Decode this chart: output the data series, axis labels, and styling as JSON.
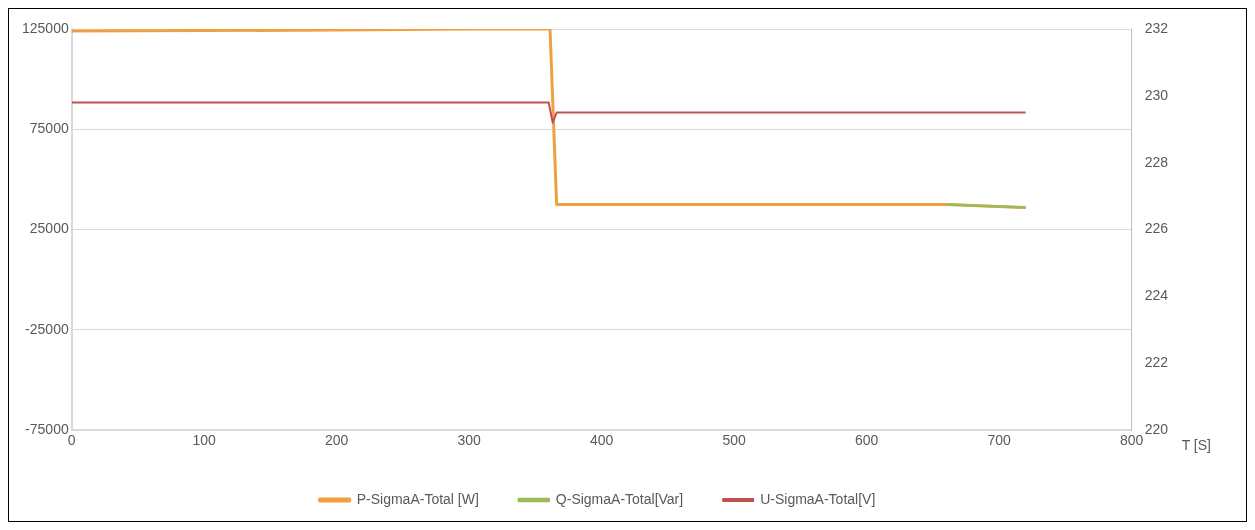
{
  "chart_data": {
    "type": "line",
    "xlabel": "T [S]",
    "xlim": [
      0,
      800
    ],
    "xticks": [
      0,
      100,
      200,
      300,
      400,
      500,
      600,
      700,
      800
    ],
    "ylim": [
      -75000,
      125000
    ],
    "yticks": [
      -75000,
      -25000,
      25000,
      75000,
      125000
    ],
    "y2lim": [
      220,
      232
    ],
    "y2ticks": [
      220,
      222,
      224,
      226,
      228,
      230,
      232
    ],
    "grid": "y",
    "legend": "bottom",
    "marker": "none",
    "line_style": "solid",
    "series": [
      {
        "name": "P-SigmaA-Total [W]",
        "color": "#f0a040",
        "x": [
          0,
          100,
          200,
          300,
          361,
          366,
          500,
          660,
          720
        ],
        "values": [
          124000,
          124200,
          124500,
          125000,
          125000,
          37500,
          37500,
          37500,
          36000
        ]
      },
      {
        "name": "Q-SigmaA-Total[Var]",
        "color": "#9bbb59",
        "x": [
          660,
          720
        ],
        "values": [
          37500,
          36000
        ]
      },
      {
        "name": "U-SigmaA-Total[V]",
        "color": "#c0504d",
        "axis": "y2",
        "x": [
          0,
          200,
          360,
          363,
          366,
          500,
          720
        ],
        "values": [
          229.8,
          229.8,
          229.8,
          229.2,
          229.5,
          229.5,
          229.5
        ]
      }
    ]
  }
}
